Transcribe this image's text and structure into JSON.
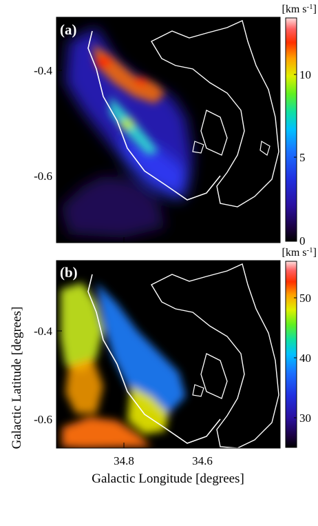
{
  "chart_data": [
    {
      "type": "heatmap",
      "panel_label": "(a)",
      "colorbar_unit": "[km s-1]",
      "colorbar_ticks": [
        0,
        5,
        10
      ],
      "colorbar_range": [
        0,
        13.5
      ],
      "yticks": [
        "-0.4",
        "-0.6"
      ],
      "ylim": [
        -0.755,
        -0.265
      ],
      "xlim": [
        34.95,
        34.45
      ],
      "colors": [
        "#000000",
        "#1a0040",
        "#2a10a0",
        "#2030e0",
        "#1a70ff",
        "#00c0ff",
        "#10e0a0",
        "#60f020",
        "#e0f000",
        "#ffa000",
        "#ff3000",
        "#ff6060",
        "#ffc0c0",
        "#ffffff"
      ]
    },
    {
      "type": "heatmap",
      "panel_label": "(b)",
      "colorbar_unit": "[km s-1]",
      "colorbar_ticks": [
        30,
        40,
        50
      ],
      "colorbar_range": [
        25,
        56
      ],
      "yticks": [
        "-0.4",
        "-0.6"
      ],
      "xticks": [
        "34.8",
        "34.6"
      ],
      "xlabel": "Galactic Longitude [degrees]",
      "ylabel": "Galactic Latitude [degrees]",
      "ylim": [
        -0.755,
        -0.265
      ],
      "xlim": [
        34.95,
        34.45
      ],
      "colors": [
        "#000000",
        "#1a0040",
        "#2a10a0",
        "#2030e0",
        "#1a70ff",
        "#00c0ff",
        "#10e0a0",
        "#60f020",
        "#e0f000",
        "#ffa000",
        "#ff3000",
        "#ff6060",
        "#ffc0c0",
        "#ffffff"
      ]
    }
  ]
}
